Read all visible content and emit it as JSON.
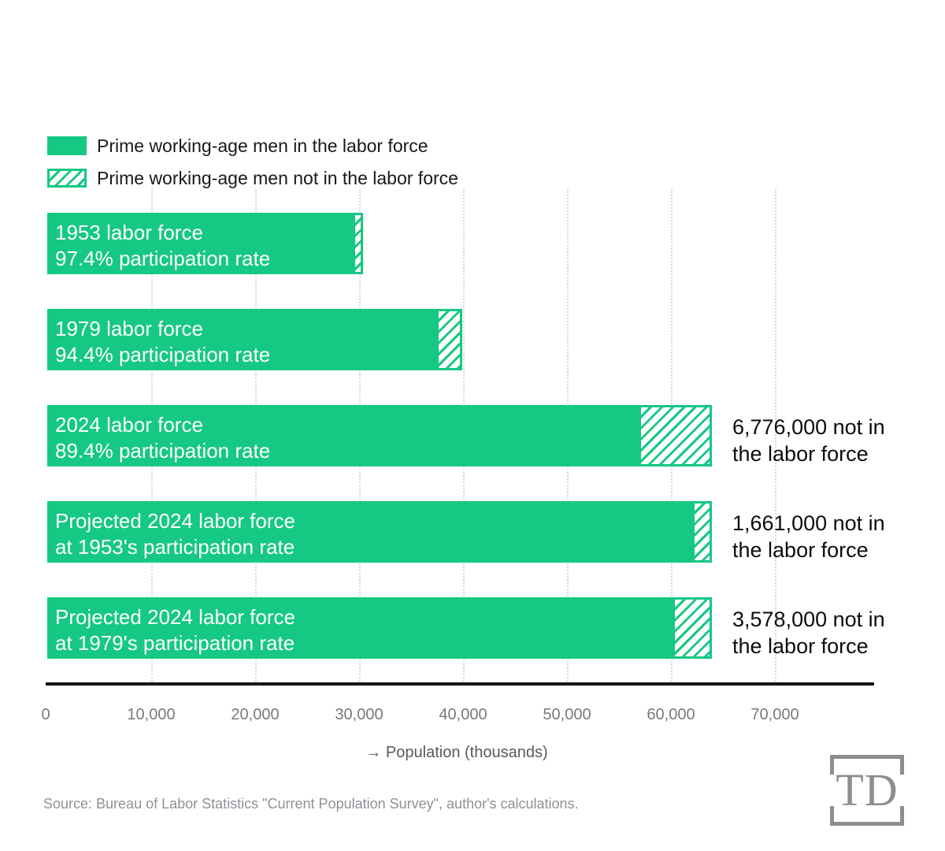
{
  "colors": {
    "green": "#15c884",
    "bar_text": "#ffffff",
    "annotation_text": "#0c0d0e",
    "axis_line": "#141414",
    "tick_text": "#76797e",
    "gridline": "#d7d7d9",
    "axis_title_text": "#55595e",
    "source_text": "#8d9196",
    "logo_gray": "#8b8e91"
  },
  "legend": {
    "items": [
      {
        "swatch": "solid",
        "label": "Prime working-age men in the labor force"
      },
      {
        "swatch": "hatched",
        "label": "Prime working-age men not in the labor force"
      }
    ]
  },
  "chart_data": {
    "type": "bar",
    "orientation": "horizontal",
    "unit": "population in thousands",
    "xlabel": "→ Population (thousands)",
    "x_axis": {
      "ticks": [
        0,
        10000,
        20000,
        30000,
        40000,
        50000,
        60000,
        70000
      ],
      "tick_labels": [
        "0",
        "10,000",
        "20,000",
        "30,000",
        "40,000",
        "50,000",
        "60,000",
        "70,000"
      ],
      "max": 79500,
      "gridlines": "dotted"
    },
    "series_names": [
      "Prime working-age men in the labor force",
      "Prime working-age men not in the labor force"
    ],
    "bars": [
      {
        "label_line1": "1953 labor force",
        "label_line2": "97.4% participation rate",
        "in_labor_force": 29610,
        "not_in_labor_force": 790,
        "annotation_line1": "",
        "annotation_line2": ""
      },
      {
        "label_line1": "1979 labor force",
        "label_line2": "94.4% participation rate",
        "in_labor_force": 37670,
        "not_in_labor_force": 2230,
        "annotation_line1": "",
        "annotation_line2": ""
      },
      {
        "label_line1": "2024 labor force",
        "label_line2": "89.4% participation rate",
        "in_labor_force": 57149,
        "not_in_labor_force": 6776,
        "annotation_line1": "6,776,000 not in",
        "annotation_line2": "the labor force"
      },
      {
        "label_line1": "Projected 2024 labor force",
        "label_line2": "at 1953's participation rate",
        "in_labor_force": 62264,
        "not_in_labor_force": 1661,
        "annotation_line1": "1,661,000 not in",
        "annotation_line2": "the labor force"
      },
      {
        "label_line1": "Projected 2024 labor force",
        "label_line2": "at 1979's participation rate",
        "in_labor_force": 60347,
        "not_in_labor_force": 3578,
        "annotation_line1": "3,578,000 not in",
        "annotation_line2": "the labor force"
      }
    ]
  },
  "footer": {
    "source": "Source: Bureau of Labor Statistics \"Current Population Survey\", author's calculations.",
    "logo_text": "TD"
  }
}
